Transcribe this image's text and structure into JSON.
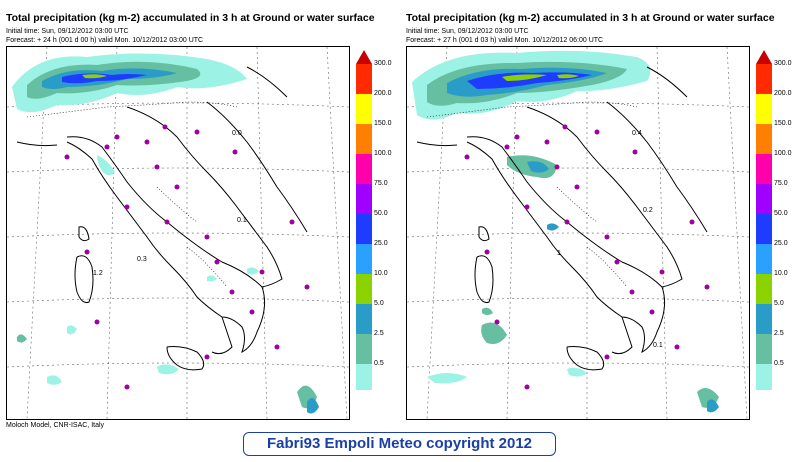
{
  "panels": [
    {
      "title": "Total precipitation (kg m-2) accumulated in   3 h at Ground or water surface",
      "initial_time": "Initial time: Sun, 09/12/2012  03:00 UTC",
      "forecast": "Forecast: + 24 h  (001 d 00 h)  valid Mon. 10/12/2012 03:00 UTC",
      "map_labels": [
        {
          "text": "0.1"
        },
        {
          "text": "0.3"
        },
        {
          "text": "1.2"
        },
        {
          "text": "0.0"
        }
      ],
      "credit": "Moloch Model, CNR-ISAC, Italy"
    },
    {
      "title": "Total precipitation (kg m-2) accumulated in   3 h at Ground or water surface",
      "initial_time": "Initial time: Sun, 09/12/2012  03:00 UTC",
      "forecast": "Forecast: + 27 h  (001 d 03 h)  valid Mon. 10/12/2012 06:00 UTC",
      "map_labels": [
        {
          "text": "0.2"
        },
        {
          "text": "0.4"
        },
        {
          "text": "1"
        },
        {
          "text": "0.1"
        }
      ],
      "credit": ""
    }
  ],
  "legend": {
    "levels": [
      "300.0",
      "200.0",
      "150.0",
      "100.0",
      "75.0",
      "50.0",
      "25.0",
      "10.0",
      "5.0",
      "2.5",
      "0.5"
    ],
    "colors": [
      "#c80000",
      "#ff2a00",
      "#ffff00",
      "#ff8000",
      "#ff00aa",
      "#a000ff",
      "#1e3cff",
      "#2aa0ff",
      "#8ad200",
      "#2a9cc8",
      "#66bfa0",
      "#9cf2e4"
    ]
  },
  "copyright": "Fabri93 Empoli Meteo copyright 2012"
}
